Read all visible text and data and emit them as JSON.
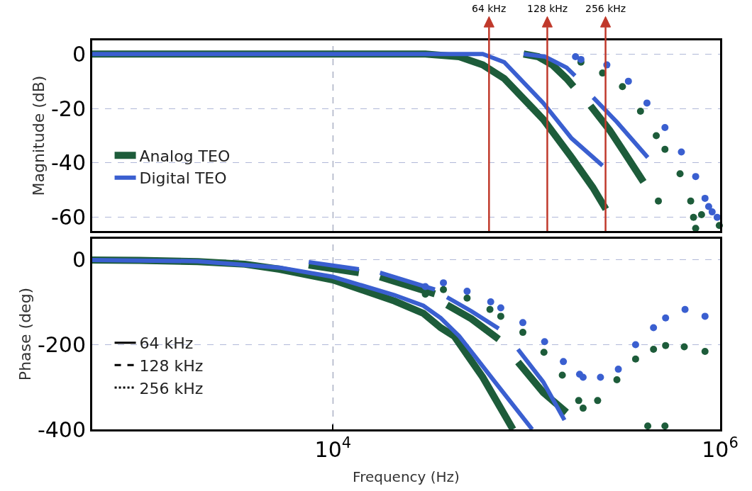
{
  "chart_data": [
    {
      "type": "line",
      "ylabel": "Magnitude (dB)",
      "log": "x",
      "xlim": [
        570,
        1000000
      ],
      "ylim": [
        -65,
        5
      ],
      "yticks": [
        0,
        -20,
        -40,
        -60
      ],
      "grid": "y",
      "legend": "left",
      "tick_labels": "y",
      "ref_lines": [
        {
          "axis": "x",
          "value": 10000,
          "color": "#9aa0b8",
          "line_style": "dashed"
        },
        {
          "axis": "x",
          "value": 64000,
          "label": "64 kHz",
          "color": "#c0392b"
        },
        {
          "axis": "x",
          "value": 128000,
          "label": "128 kHz",
          "color": "#c0392b"
        },
        {
          "axis": "x",
          "value": 256000,
          "label": "256 kHz",
          "color": "#c0392b"
        }
      ],
      "series": [
        {
          "name": "Analog TEO",
          "color": "#1d5c3a",
          "x": [
            570,
            1000,
            2000,
            5000,
            10000,
            20000,
            30000,
            44900,
            59400,
            76700,
            122000,
            171000,
            220000,
            257000
          ],
          "values": [
            0,
            0,
            0,
            0,
            0,
            0,
            0,
            -1,
            -4,
            -9,
            -24,
            -38,
            -49,
            -57
          ]
        },
        {
          "name": "Digital TEO",
          "color": "#3a5fd0",
          "x": [
            570,
            1000,
            2000,
            5000,
            10000,
            20000,
            30000,
            59400,
            76700,
            122000,
            171000,
            247000
          ],
          "values": [
            0,
            0,
            0,
            0,
            0,
            0,
            0,
            0,
            -3,
            -18,
            -31,
            -41
          ]
        },
        {
          "color": "#1d5c3a",
          "x": [
            96600,
            115000,
            136000,
            161000,
            175000
          ],
          "values": [
            0,
            -1,
            -4,
            -9,
            -12
          ]
        },
        {
          "color": "#3a5fd0",
          "x": [
            96600,
            125000,
            161000,
            178000
          ],
          "values": [
            0,
            -1,
            -5,
            -8
          ]
        },
        {
          "color": "#1d5c3a",
          "x": [
            214000,
            269000,
            319000,
            402000
          ],
          "values": [
            -19,
            -28,
            -36,
            -47
          ]
        },
        {
          "color": "#3a5fd0",
          "x": [
            221000,
            293000,
            423000
          ],
          "values": [
            -16,
            -25,
            -38
          ]
        },
        {
          "color": "#1d5c3a",
          "type": "scatter",
          "marker": "circle",
          "x": [
            191000,
            247000,
            313000,
            388000,
            468000,
            480000,
            519000,
            621000,
            705000,
            729000,
            748000,
            802000,
            991000
          ],
          "values": [
            -3,
            -7,
            -12,
            -21,
            -30,
            -54,
            -35,
            -44,
            -54,
            -60,
            -64,
            -59,
            -63
          ]
        },
        {
          "color": "#3a5fd0",
          "type": "scatter",
          "marker": "circle",
          "x": [
            179000,
            191000,
            260000,
            336000,
            419000,
            519000,
            631000,
            748000,
            836000,
            873000,
            910000,
            966000
          ],
          "values": [
            -1,
            -2,
            -4,
            -10,
            -18,
            -27,
            -36,
            -45,
            -53,
            -56,
            -58,
            -60
          ]
        }
      ]
    },
    {
      "type": "line",
      "ylabel": "Phase (deg)",
      "xlabel": "Frequency (Hz)",
      "log": "x",
      "xlim": [
        570,
        1000000
      ],
      "xticks": [
        {
          "value": 10000,
          "label": "10$^{4}$"
        },
        {
          "value": 1000000,
          "label": "10$^{6}$"
        }
      ],
      "ylim": [
        -400,
        50
      ],
      "yticks": [
        0,
        -200,
        -400
      ],
      "grid": "y",
      "legend": "left",
      "ref_lines": [
        {
          "axis": "x",
          "value": 10000,
          "color": "#9aa0b8",
          "line_style": "dashed"
        }
      ],
      "series": [
        {
          "color": "#1d5c3a",
          "x": [
            570,
            1000,
            2000,
            3500,
            5300,
            10000,
            20800,
            29300,
            36000,
            42300,
            59400,
            85100
          ],
          "values": [
            0,
            -1,
            -4,
            -10,
            -22,
            -47,
            -97,
            -126,
            -160,
            -180,
            -277,
            -400
          ]
        },
        {
          "color": "#3a5fd0",
          "x": [
            570,
            2000,
            5300,
            10000,
            20800,
            29300,
            36000,
            44900,
            68700,
            107000
          ],
          "values": [
            0,
            -3,
            -18,
            -40,
            -83,
            -108,
            -137,
            -180,
            -288,
            -400
          ]
        },
        {
          "color": "#1d5c3a",
          "x": [
            7490,
            13600
          ],
          "values": [
            -12,
            -30
          ]
        },
        {
          "color": "#3a5fd0",
          "x": [
            7490,
            13600
          ],
          "values": [
            -5,
            -22
          ]
        },
        {
          "color": "#1d5c3a",
          "x": [
            17500,
            33600
          ],
          "values": [
            -40,
            -80
          ]
        },
        {
          "color": "#3a5fd0",
          "x": [
            17500,
            33600
          ],
          "values": [
            -30,
            -70
          ]
        },
        {
          "color": "#1d5c3a",
          "x": [
            38800,
            51900,
            71800
          ],
          "values": [
            -106,
            -139,
            -187
          ]
        },
        {
          "color": "#3a5fd0",
          "x": [
            38800,
            51900,
            71800
          ],
          "values": [
            -88,
            -121,
            -162
          ]
        },
        {
          "color": "#1d5c3a",
          "x": [
            90300,
            122000,
            161000
          ],
          "values": [
            -241,
            -313,
            -360
          ]
        },
        {
          "color": "#3a5fd0",
          "x": [
            90300,
            122000,
            157000
          ],
          "values": [
            -211,
            -288,
            -378
          ]
        },
        {
          "color": "#1d5c3a",
          "type": "scatter",
          "marker": "circle",
          "x": [
            30000,
            37200,
            49300,
            64700,
            73600,
            95700,
            123000,
            153000,
            186000,
            196000,
            233000,
            293000,
            366000,
            423000,
            453000,
            519000,
            523000,
            653000,
            836000
          ],
          "values": [
            -81,
            -70,
            -90,
            -117,
            -133,
            -171,
            -218,
            -272,
            -332,
            -350,
            -332,
            -283,
            -234,
            -392,
            -211,
            -392,
            -202,
            -205,
            -216
          ]
        },
        {
          "color": "#3a5fd0",
          "type": "scatter",
          "marker": "circle",
          "x": [
            30000,
            37200,
            49300,
            65300,
            73600,
            95700,
            124000,
            155000,
            188000,
            196000,
            241000,
            298000,
            366000,
            453000,
            523000,
            659000,
            836000
          ],
          "values": [
            -63,
            -54,
            -74,
            -99,
            -113,
            -148,
            -193,
            -240,
            -270,
            -277,
            -277,
            -258,
            -200,
            -160,
            -137,
            -117,
            -133
          ]
        },
        {
          "name": "64 kHz",
          "color": "#000000",
          "line_style": "solid"
        },
        {
          "name": "128 kHz",
          "color": "#000000",
          "line_style": "dashed"
        },
        {
          "name": "256 kHz",
          "color": "#000000",
          "line_style": "dotted"
        }
      ]
    }
  ]
}
